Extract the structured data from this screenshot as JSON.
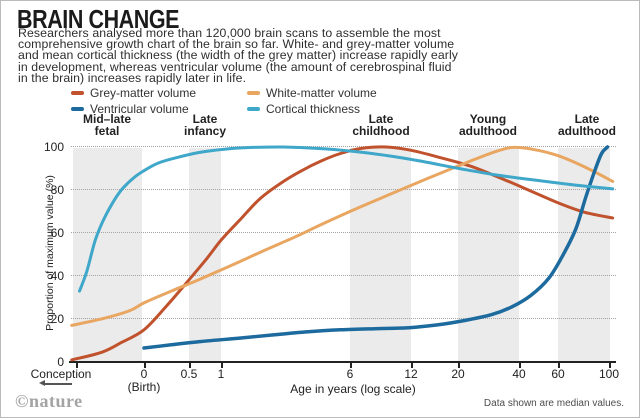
{
  "header": {
    "title": "BRAIN CHANGE",
    "description_lines": [
      "Researchers analysed more than 120,000 brain scans to assemble the most",
      "comprehensive growth chart of the brain so far. White- and grey-matter volume",
      "and mean cortical thickness (the width of the grey matter) increase rapidly early",
      "in development, whereas ventricular volume (the amount of cerebrospinal fluid",
      "in the brain) increases rapidly later in life."
    ]
  },
  "legend": [
    {
      "label": "Grey-matter volume",
      "color": "#c0522d"
    },
    {
      "label": "White-matter volume",
      "color": "#e8a661"
    },
    {
      "label": "Ventricular volume",
      "color": "#1d6b9e"
    },
    {
      "label": "Cortical thickness",
      "color": "#3fa7c9"
    }
  ],
  "chart_data": {
    "type": "line",
    "title": "BRAIN CHANGE",
    "xlabel": "Age in years (log scale)",
    "ylabel": "Proportion of maximum value (%)",
    "x_scale": "logarithmic in age-from-conception (gestation ~0.75 yr)",
    "x_ticks": [
      "Conception",
      "0",
      "0.5",
      "1",
      "6",
      "12",
      "20",
      "40",
      "60",
      "100"
    ],
    "birth_note": "(Birth)",
    "y_ticks": [
      "0",
      "20",
      "40",
      "60",
      "80",
      "100"
    ],
    "ylim": [
      0,
      100
    ],
    "grid": "dotted horizontal lines at 20/40/60/80/100",
    "legend_position": "top-left",
    "stage_labels": [
      {
        "line1": "Mid–late",
        "line2": "fetal",
        "center_age": "prenatal"
      },
      {
        "line1": "Late",
        "line2": "infancy",
        "center_age": "0.5–1"
      },
      {
        "line1": "Late",
        "line2": "childhood",
        "center_age": "6–12"
      },
      {
        "line1": "Young",
        "line2": "adulthood",
        "center_age": "20–40"
      },
      {
        "line1": "Late",
        "line2": "adulthood",
        "center_age": "60–100"
      }
    ],
    "series": [
      {
        "name": "Grey-matter volume",
        "color": "#c0522d",
        "width": 3,
        "points": [
          [
            -0.4,
            1
          ],
          [
            -0.27,
            4.5
          ],
          [
            -0.16,
            9
          ],
          [
            0,
            15
          ],
          [
            0.2,
            26
          ],
          [
            0.45,
            38
          ],
          [
            0.7,
            48
          ],
          [
            0.95,
            57
          ],
          [
            1.35,
            67
          ],
          [
            1.8,
            76
          ],
          [
            2.4,
            83
          ],
          [
            3.2,
            89
          ],
          [
            4.1,
            93.5
          ],
          [
            5.2,
            97
          ],
          [
            6.6,
            99.3
          ],
          [
            8.9,
            100
          ],
          [
            11.7,
            98.5
          ],
          [
            16.4,
            95
          ],
          [
            22.8,
            91
          ],
          [
            31.5,
            85.5
          ],
          [
            43.5,
            79.5
          ],
          [
            60,
            73.5
          ],
          [
            78,
            69.5
          ],
          [
            104,
            67
          ]
        ]
      },
      {
        "name": "White-matter volume",
        "color": "#e8a661",
        "width": 3,
        "points": [
          [
            -0.4,
            17
          ],
          [
            -0.25,
            20.5
          ],
          [
            -0.1,
            24
          ],
          [
            0,
            27.5
          ],
          [
            0.25,
            33
          ],
          [
            0.5,
            37
          ],
          [
            0.75,
            40.5
          ],
          [
            1,
            43.5
          ],
          [
            1.5,
            48.5
          ],
          [
            2,
            52.5
          ],
          [
            3,
            58.5
          ],
          [
            4,
            63.5
          ],
          [
            6,
            70.5
          ],
          [
            9,
            77.5
          ],
          [
            12,
            82.5
          ],
          [
            16,
            87.5
          ],
          [
            22,
            93
          ],
          [
            30,
            98
          ],
          [
            36,
            99.8
          ],
          [
            44,
            99
          ],
          [
            58,
            96
          ],
          [
            78,
            90.5
          ],
          [
            104,
            84
          ]
        ]
      },
      {
        "name": "Ventricular volume",
        "color": "#1d6b9e",
        "width": 3.5,
        "points": [
          [
            0,
            6.5
          ],
          [
            0.25,
            8
          ],
          [
            0.6,
            9.5
          ],
          [
            1.25,
            11
          ],
          [
            2.1,
            12.5
          ],
          [
            3.4,
            14
          ],
          [
            5.2,
            15
          ],
          [
            7.8,
            15.5
          ],
          [
            11.7,
            16
          ],
          [
            16.4,
            17.5
          ],
          [
            21.7,
            19.5
          ],
          [
            28.4,
            22
          ],
          [
            35.2,
            25.5
          ],
          [
            43.5,
            31
          ],
          [
            52.7,
            39
          ],
          [
            61.5,
            50
          ],
          [
            70.3,
            62
          ],
          [
            78.3,
            77
          ],
          [
            86,
            89
          ],
          [
            92.4,
            97
          ],
          [
            98.4,
            100
          ]
        ]
      },
      {
        "name": "Cortical thickness",
        "color": "#3fa7c9",
        "width": 3,
        "points": [
          [
            -0.37,
            33
          ],
          [
            -0.34,
            42
          ],
          [
            -0.3,
            57
          ],
          [
            -0.25,
            68
          ],
          [
            -0.17,
            79
          ],
          [
            -0.08,
            85.5
          ],
          [
            0,
            89
          ],
          [
            0.12,
            92.5
          ],
          [
            0.3,
            95
          ],
          [
            0.6,
            97.5
          ],
          [
            1,
            99
          ],
          [
            1.6,
            99.8
          ],
          [
            2.5,
            100
          ],
          [
            4,
            99.3
          ],
          [
            6,
            98
          ],
          [
            9,
            96
          ],
          [
            13,
            93.5
          ],
          [
            20,
            90
          ],
          [
            30,
            87
          ],
          [
            48,
            84.3
          ],
          [
            70,
            82.3
          ],
          [
            104,
            80.5
          ]
        ]
      }
    ]
  },
  "footer": {
    "logo": "©nature",
    "note": "Data shown are median values."
  }
}
